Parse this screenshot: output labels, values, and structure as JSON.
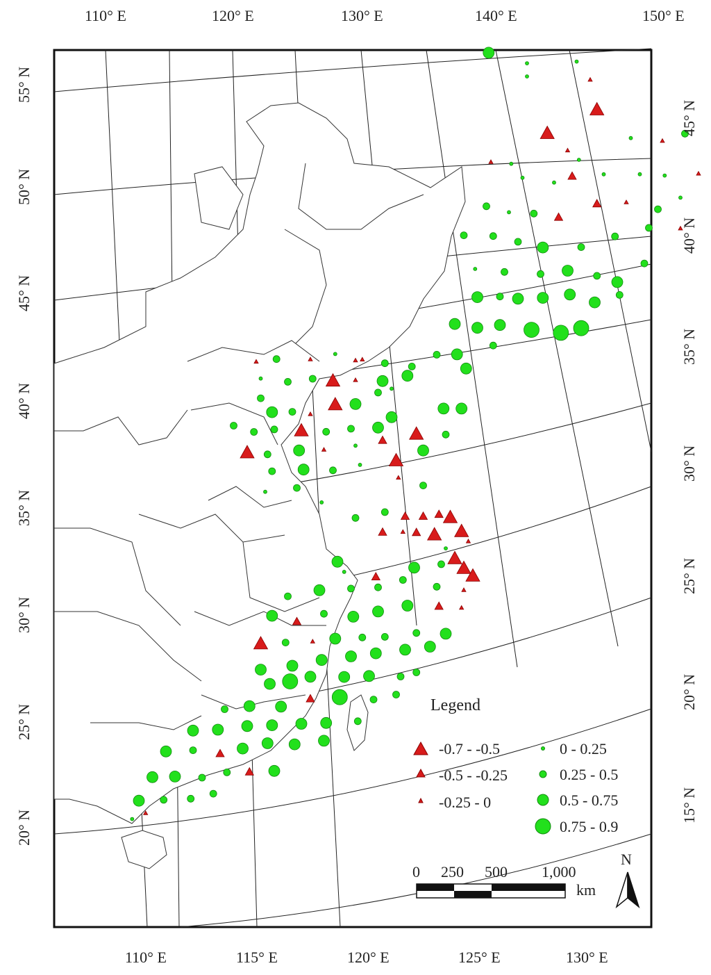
{
  "colors": {
    "negative": "#d81b1b",
    "negative_stroke": "#8b0000",
    "positive": "#22e01c",
    "positive_stroke": "#138a10",
    "frame": "#111111",
    "grid": "#222222"
  },
  "ticks": {
    "top": [
      "110° E",
      "120° E",
      "130° E",
      "140° E",
      "150° E"
    ],
    "bottom": [
      "110° E",
      "115° E",
      "120° E",
      "125° E",
      "130° E"
    ],
    "left": [
      "55° N",
      "50° N",
      "45° N",
      "40° N",
      "35° N",
      "30° N",
      "25° N",
      "20° N"
    ],
    "right": [
      "45° N",
      "40° N",
      "35° N",
      "30° N",
      "25° N",
      "20° N",
      "15° N"
    ]
  },
  "legend": {
    "title": "Legend",
    "negative_classes": [
      {
        "label": "-0.7 - -0.5",
        "size": 3
      },
      {
        "label": "-0.5 - -0.25",
        "size": 2
      },
      {
        "label": "-0.25 - 0",
        "size": 1
      }
    ],
    "positive_classes": [
      {
        "label": "0 - 0.25",
        "size": 1
      },
      {
        "label": "0.25 - 0.5",
        "size": 2
      },
      {
        "label": "0.5 - 0.75",
        "size": 3
      },
      {
        "label": "0.75 - 0.9",
        "size": 4
      }
    ]
  },
  "scale_bar": {
    "labels": [
      "0",
      "250",
      "500",
      "1,000"
    ],
    "unit": "km"
  },
  "north_arrow": {
    "label": "N"
  },
  "stations": [
    {
      "lon": 122.5,
      "lat": 53.4,
      "cls": "p3"
    },
    {
      "lon": 124.2,
      "lat": 52.7,
      "cls": "p1"
    },
    {
      "lon": 124.2,
      "lat": 52.1,
      "cls": "p1"
    },
    {
      "lon": 126.4,
      "lat": 52.5,
      "cls": "p1"
    },
    {
      "lon": 127.0,
      "lat": 51.6,
      "cls": "n1"
    },
    {
      "lon": 127.3,
      "lat": 50.2,
      "cls": "n3"
    },
    {
      "lon": 125.1,
      "lat": 49.4,
      "cls": "n3"
    },
    {
      "lon": 122.6,
      "lat": 48.4,
      "cls": "n1"
    },
    {
      "lon": 123.5,
      "lat": 48.2,
      "cls": "p1"
    },
    {
      "lon": 126.0,
      "lat": 48.5,
      "cls": "n1"
    },
    {
      "lon": 126.5,
      "lat": 48.0,
      "cls": "p1"
    },
    {
      "lon": 128.8,
      "lat": 48.7,
      "cls": "p1"
    },
    {
      "lon": 130.2,
      "lat": 48.4,
      "cls": "n1"
    },
    {
      "lon": 131.2,
      "lat": 48.6,
      "cls": "p2"
    },
    {
      "lon": 133.4,
      "lat": 48.1,
      "cls": "n1"
    },
    {
      "lon": 134.2,
      "lat": 47.4,
      "cls": "n1"
    },
    {
      "lon": 124.0,
      "lat": 47.5,
      "cls": "p1"
    },
    {
      "lon": 125.4,
      "lat": 47.1,
      "cls": "p1"
    },
    {
      "lon": 126.2,
      "lat": 47.3,
      "cls": "n2"
    },
    {
      "lon": 127.6,
      "lat": 47.2,
      "cls": "p1"
    },
    {
      "lon": 129.2,
      "lat": 47.0,
      "cls": "p1"
    },
    {
      "lon": 130.3,
      "lat": 46.8,
      "cls": "p1"
    },
    {
      "lon": 131.8,
      "lat": 46.7,
      "cls": "n1"
    },
    {
      "lon": 122.4,
      "lat": 46.4,
      "cls": "p2"
    },
    {
      "lon": 123.4,
      "lat": 46.0,
      "cls": "p1"
    },
    {
      "lon": 124.5,
      "lat": 45.8,
      "cls": "p2"
    },
    {
      "lon": 125.6,
      "lat": 45.5,
      "cls": "n2"
    },
    {
      "lon": 127.3,
      "lat": 45.9,
      "cls": "n2"
    },
    {
      "lon": 128.6,
      "lat": 45.8,
      "cls": "n1"
    },
    {
      "lon": 130.0,
      "lat": 45.3,
      "cls": "p2"
    },
    {
      "lon": 131.0,
      "lat": 45.7,
      "cls": "p1"
    },
    {
      "lon": 121.4,
      "lat": 45.2,
      "cls": "p2"
    },
    {
      "lon": 122.7,
      "lat": 45.0,
      "cls": "p2"
    },
    {
      "lon": 123.8,
      "lat": 44.6,
      "cls": "p2"
    },
    {
      "lon": 124.9,
      "lat": 44.2,
      "cls": "p3"
    },
    {
      "lon": 126.6,
      "lat": 44.0,
      "cls": "p2"
    },
    {
      "lon": 128.1,
      "lat": 44.3,
      "cls": "p2"
    },
    {
      "lon": 129.6,
      "lat": 44.5,
      "cls": "p2"
    },
    {
      "lon": 131.0,
      "lat": 44.3,
      "cls": "n1"
    },
    {
      "lon": 121.9,
      "lat": 43.6,
      "cls": "p1"
    },
    {
      "lon": 123.2,
      "lat": 43.3,
      "cls": "p2"
    },
    {
      "lon": 124.8,
      "lat": 43.0,
      "cls": "p2"
    },
    {
      "lon": 126.0,
      "lat": 43.0,
      "cls": "p3"
    },
    {
      "lon": 127.3,
      "lat": 42.6,
      "cls": "p2"
    },
    {
      "lon": 128.2,
      "lat": 42.2,
      "cls": "p3"
    },
    {
      "lon": 129.4,
      "lat": 42.9,
      "cls": "p2"
    },
    {
      "lon": 122.0,
      "lat": 42.3,
      "cls": "p3"
    },
    {
      "lon": 123.0,
      "lat": 42.2,
      "cls": "p2"
    },
    {
      "lon": 123.8,
      "lat": 42.0,
      "cls": "p3"
    },
    {
      "lon": 124.9,
      "lat": 41.9,
      "cls": "p3"
    },
    {
      "lon": 126.1,
      "lat": 41.9,
      "cls": "p3"
    },
    {
      "lon": 127.2,
      "lat": 41.4,
      "cls": "p3"
    },
    {
      "lon": 128.3,
      "lat": 41.6,
      "cls": "p2"
    },
    {
      "lon": 121.0,
      "lat": 41.2,
      "cls": "p3"
    },
    {
      "lon": 122.0,
      "lat": 40.9,
      "cls": "p3"
    },
    {
      "lon": 123.0,
      "lat": 40.9,
      "cls": "p3"
    },
    {
      "lon": 124.4,
      "lat": 40.5,
      "cls": "p4"
    },
    {
      "lon": 125.7,
      "lat": 40.2,
      "cls": "p4"
    },
    {
      "lon": 126.6,
      "lat": 40.3,
      "cls": "p4"
    },
    {
      "lon": 122.7,
      "lat": 40.0,
      "cls": "p2"
    },
    {
      "lon": 121.1,
      "lat": 39.8,
      "cls": "p3"
    },
    {
      "lon": 121.5,
      "lat": 39.1,
      "cls": "p3"
    },
    {
      "lon": 120.2,
      "lat": 39.9,
      "cls": "p2"
    },
    {
      "lon": 119.1,
      "lat": 39.5,
      "cls": "p2"
    },
    {
      "lon": 117.9,
      "lat": 39.8,
      "cls": "p2"
    },
    {
      "lon": 116.6,
      "lat": 40.1,
      "cls": "n1"
    },
    {
      "lon": 113.1,
      "lat": 40.6,
      "cls": "p2"
    },
    {
      "lon": 114.6,
      "lat": 40.4,
      "cls": "n1"
    },
    {
      "lon": 115.7,
      "lat": 40.5,
      "cls": "p1"
    },
    {
      "lon": 116.9,
      "lat": 40.1,
      "cls": "n1"
    },
    {
      "lon": 112.2,
      "lat": 40.6,
      "cls": "n1"
    },
    {
      "lon": 112.4,
      "lat": 39.8,
      "cls": "p1"
    },
    {
      "lon": 113.6,
      "lat": 39.5,
      "cls": "p2"
    },
    {
      "lon": 114.7,
      "lat": 39.5,
      "cls": "p2"
    },
    {
      "lon": 115.6,
      "lat": 39.3,
      "cls": "n3"
    },
    {
      "lon": 116.6,
      "lat": 39.2,
      "cls": "n1"
    },
    {
      "lon": 117.8,
      "lat": 39.0,
      "cls": "p3"
    },
    {
      "lon": 118.9,
      "lat": 39.1,
      "cls": "p3"
    },
    {
      "lon": 112.4,
      "lat": 38.9,
      "cls": "p2"
    },
    {
      "lon": 115.7,
      "lat": 38.2,
      "cls": "n3"
    },
    {
      "lon": 116.6,
      "lat": 38.1,
      "cls": "p3"
    },
    {
      "lon": 117.6,
      "lat": 38.5,
      "cls": "p2"
    },
    {
      "lon": 118.2,
      "lat": 38.6,
      "cls": "p1"
    },
    {
      "lon": 112.9,
      "lat": 38.2,
      "cls": "p3"
    },
    {
      "lon": 113.8,
      "lat": 38.1,
      "cls": "p2"
    },
    {
      "lon": 114.6,
      "lat": 37.9,
      "cls": "n1"
    },
    {
      "lon": 111.2,
      "lat": 37.8,
      "cls": "p2"
    },
    {
      "lon": 112.1,
      "lat": 37.4,
      "cls": "p2"
    },
    {
      "lon": 113.0,
      "lat": 37.4,
      "cls": "p2"
    },
    {
      "lon": 114.2,
      "lat": 37.2,
      "cls": "n3"
    },
    {
      "lon": 115.3,
      "lat": 37.0,
      "cls": "p2"
    },
    {
      "lon": 116.4,
      "lat": 37.0,
      "cls": "p2"
    },
    {
      "lon": 117.6,
      "lat": 36.9,
      "cls": "p3"
    },
    {
      "lon": 118.2,
      "lat": 37.3,
      "cls": "p3"
    },
    {
      "lon": 120.5,
      "lat": 37.4,
      "cls": "p3"
    },
    {
      "lon": 121.3,
      "lat": 37.3,
      "cls": "p3"
    },
    {
      "lon": 111.8,
      "lat": 36.5,
      "cls": "n3"
    },
    {
      "lon": 112.7,
      "lat": 36.3,
      "cls": "p2"
    },
    {
      "lon": 114.1,
      "lat": 36.3,
      "cls": "p3"
    },
    {
      "lon": 115.2,
      "lat": 36.2,
      "cls": "n1"
    },
    {
      "lon": 116.6,
      "lat": 36.2,
      "cls": "p1"
    },
    {
      "lon": 117.8,
      "lat": 36.3,
      "cls": "n2"
    },
    {
      "lon": 119.3,
      "lat": 36.4,
      "cls": "n3"
    },
    {
      "lon": 120.6,
      "lat": 36.2,
      "cls": "p2"
    },
    {
      "lon": 112.9,
      "lat": 35.5,
      "cls": "p2"
    },
    {
      "lon": 114.3,
      "lat": 35.4,
      "cls": "p3"
    },
    {
      "lon": 115.6,
      "lat": 35.2,
      "cls": "p2"
    },
    {
      "lon": 116.8,
      "lat": 35.3,
      "cls": "p1"
    },
    {
      "lon": 118.4,
      "lat": 35.3,
      "cls": "n3"
    },
    {
      "lon": 119.6,
      "lat": 35.6,
      "cls": "p3"
    },
    {
      "lon": 112.6,
      "lat": 34.6,
      "cls": "p1"
    },
    {
      "lon": 114.0,
      "lat": 34.6,
      "cls": "p2"
    },
    {
      "lon": 118.5,
      "lat": 34.5,
      "cls": "n1"
    },
    {
      "lon": 115.1,
      "lat": 33.8,
      "cls": "p1"
    },
    {
      "lon": 119.6,
      "lat": 34.0,
      "cls": "p2"
    },
    {
      "lon": 116.6,
      "lat": 32.9,
      "cls": "p2"
    },
    {
      "lon": 117.9,
      "lat": 33.0,
      "cls": "p2"
    },
    {
      "lon": 118.8,
      "lat": 32.7,
      "cls": "n2"
    },
    {
      "lon": 119.6,
      "lat": 32.6,
      "cls": "n2"
    },
    {
      "lon": 120.3,
      "lat": 32.6,
      "cls": "n2"
    },
    {
      "lon": 120.8,
      "lat": 32.4,
      "cls": "n3"
    },
    {
      "lon": 117.8,
      "lat": 32.1,
      "cls": "n2"
    },
    {
      "lon": 118.7,
      "lat": 32.0,
      "cls": "n1"
    },
    {
      "lon": 119.3,
      "lat": 31.9,
      "cls": "n2"
    },
    {
      "lon": 120.1,
      "lat": 31.7,
      "cls": "n3"
    },
    {
      "lon": 121.3,
      "lat": 31.7,
      "cls": "n3"
    },
    {
      "lon": 121.6,
      "lat": 31.2,
      "cls": "n1"
    },
    {
      "lon": 120.6,
      "lat": 31.0,
      "cls": "p1"
    },
    {
      "lon": 121.0,
      "lat": 30.5,
      "cls": "n3"
    },
    {
      "lon": 121.4,
      "lat": 30.0,
      "cls": "n3"
    },
    {
      "lon": 121.8,
      "lat": 29.6,
      "cls": "n3"
    },
    {
      "lon": 115.8,
      "lat": 31.0,
      "cls": "p3"
    },
    {
      "lon": 116.1,
      "lat": 30.5,
      "cls": "p1"
    },
    {
      "lon": 117.5,
      "lat": 30.1,
      "cls": "n2"
    },
    {
      "lon": 119.2,
      "lat": 30.3,
      "cls": "p3"
    },
    {
      "lon": 120.4,
      "lat": 30.3,
      "cls": "p2"
    },
    {
      "lon": 113.6,
      "lat": 29.7,
      "cls": "p2"
    },
    {
      "lon": 115.0,
      "lat": 29.8,
      "cls": "p3"
    },
    {
      "lon": 116.4,
      "lat": 29.7,
      "cls": "p2"
    },
    {
      "lon": 117.6,
      "lat": 29.6,
      "cls": "p2"
    },
    {
      "lon": 118.7,
      "lat": 29.8,
      "cls": "p2"
    },
    {
      "lon": 120.2,
      "lat": 29.3,
      "cls": "p2"
    },
    {
      "lon": 121.4,
      "lat": 29.0,
      "cls": "n1"
    },
    {
      "lon": 112.9,
      "lat": 28.9,
      "cls": "p3"
    },
    {
      "lon": 114.0,
      "lat": 28.5,
      "cls": "n2"
    },
    {
      "lon": 115.2,
      "lat": 28.7,
      "cls": "p2"
    },
    {
      "lon": 116.5,
      "lat": 28.4,
      "cls": "p3"
    },
    {
      "lon": 117.6,
      "lat": 28.5,
      "cls": "p3"
    },
    {
      "lon": 118.9,
      "lat": 28.6,
      "cls": "p3"
    },
    {
      "lon": 120.3,
      "lat": 28.4,
      "cls": "n2"
    },
    {
      "lon": 121.3,
      "lat": 28.2,
      "cls": "n1"
    },
    {
      "lon": 112.4,
      "lat": 27.7,
      "cls": "n3"
    },
    {
      "lon": 113.5,
      "lat": 27.6,
      "cls": "p2"
    },
    {
      "lon": 114.7,
      "lat": 27.5,
      "cls": "n1"
    },
    {
      "lon": 115.7,
      "lat": 27.5,
      "cls": "p3"
    },
    {
      "lon": 116.9,
      "lat": 27.4,
      "cls": "p2"
    },
    {
      "lon": 117.9,
      "lat": 27.3,
      "cls": "p2"
    },
    {
      "lon": 119.3,
      "lat": 27.3,
      "cls": "p2"
    },
    {
      "lon": 120.6,
      "lat": 27.1,
      "cls": "p3"
    },
    {
      "lon": 112.4,
      "lat": 26.5,
      "cls": "p3"
    },
    {
      "lon": 113.8,
      "lat": 26.5,
      "cls": "p3"
    },
    {
      "lon": 115.1,
      "lat": 26.6,
      "cls": "p3"
    },
    {
      "lon": 116.4,
      "lat": 26.6,
      "cls": "p3"
    },
    {
      "lon": 117.5,
      "lat": 26.6,
      "cls": "p3"
    },
    {
      "lon": 118.8,
      "lat": 26.6,
      "cls": "p3"
    },
    {
      "lon": 119.9,
      "lat": 26.6,
      "cls": "p3"
    },
    {
      "lon": 112.8,
      "lat": 25.8,
      "cls": "p3"
    },
    {
      "lon": 113.7,
      "lat": 25.8,
      "cls": "p4"
    },
    {
      "lon": 114.6,
      "lat": 25.9,
      "cls": "p3"
    },
    {
      "lon": 116.1,
      "lat": 25.7,
      "cls": "p3"
    },
    {
      "lon": 117.2,
      "lat": 25.6,
      "cls": "p3"
    },
    {
      "lon": 118.6,
      "lat": 25.4,
      "cls": "p2"
    },
    {
      "lon": 119.3,
      "lat": 25.5,
      "cls": "p2"
    },
    {
      "lon": 110.8,
      "lat": 24.9,
      "cls": "p2"
    },
    {
      "lon": 111.9,
      "lat": 24.9,
      "cls": "p3"
    },
    {
      "lon": 113.3,
      "lat": 24.7,
      "cls": "p3"
    },
    {
      "lon": 114.6,
      "lat": 24.9,
      "cls": "n2"
    },
    {
      "lon": 115.9,
      "lat": 24.8,
      "cls": "p4"
    },
    {
      "lon": 117.4,
      "lat": 24.5,
      "cls": "p2"
    },
    {
      "lon": 118.4,
      "lat": 24.6,
      "cls": "p2"
    },
    {
      "lon": 109.4,
      "lat": 24.1,
      "cls": "p3"
    },
    {
      "lon": 110.5,
      "lat": 24.0,
      "cls": "p3"
    },
    {
      "lon": 111.8,
      "lat": 24.0,
      "cls": "p3"
    },
    {
      "lon": 112.9,
      "lat": 23.9,
      "cls": "p3"
    },
    {
      "lon": 114.2,
      "lat": 23.8,
      "cls": "p3"
    },
    {
      "lon": 115.3,
      "lat": 23.7,
      "cls": "p3"
    },
    {
      "lon": 116.7,
      "lat": 23.6,
      "cls": "p2"
    },
    {
      "lon": 108.2,
      "lat": 23.3,
      "cls": "p3"
    },
    {
      "lon": 109.4,
      "lat": 23.2,
      "cls": "p2"
    },
    {
      "lon": 110.6,
      "lat": 22.9,
      "cls": "n2"
    },
    {
      "lon": 111.6,
      "lat": 23.0,
      "cls": "p3"
    },
    {
      "lon": 112.7,
      "lat": 23.1,
      "cls": "p3"
    },
    {
      "lon": 113.9,
      "lat": 22.9,
      "cls": "p3"
    },
    {
      "lon": 115.2,
      "lat": 22.9,
      "cls": "p3"
    },
    {
      "lon": 107.6,
      "lat": 22.2,
      "cls": "p3"
    },
    {
      "lon": 108.6,
      "lat": 22.1,
      "cls": "p3"
    },
    {
      "lon": 109.8,
      "lat": 21.9,
      "cls": "p2"
    },
    {
      "lon": 110.9,
      "lat": 22.0,
      "cls": "p2"
    },
    {
      "lon": 111.9,
      "lat": 21.9,
      "cls": "n2"
    },
    {
      "lon": 113.0,
      "lat": 21.8,
      "cls": "p3"
    },
    {
      "lon": 107.0,
      "lat": 21.2,
      "cls": "p3"
    },
    {
      "lon": 108.1,
      "lat": 21.1,
      "cls": "p2"
    },
    {
      "lon": 109.3,
      "lat": 21.0,
      "cls": "p2"
    },
    {
      "lon": 110.3,
      "lat": 21.1,
      "cls": "p2"
    },
    {
      "lon": 106.7,
      "lat": 20.4,
      "cls": "p1"
    },
    {
      "lon": 107.3,
      "lat": 20.6,
      "cls": "n1"
    }
  ]
}
